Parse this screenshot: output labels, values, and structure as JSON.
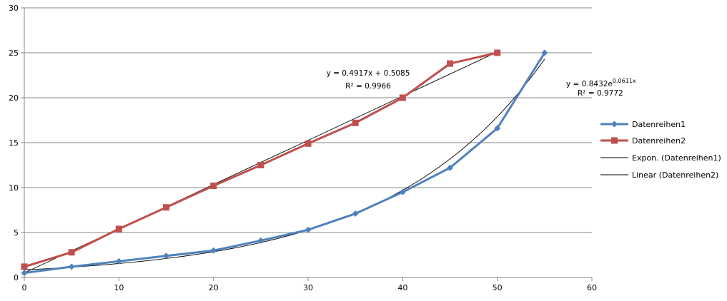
{
  "chart_data": {
    "type": "scatter",
    "xlim": [
      0,
      60
    ],
    "ylim": [
      0,
      30
    ],
    "x_ticks": [
      0,
      10,
      20,
      30,
      40,
      50,
      60
    ],
    "y_ticks": [
      0,
      5,
      10,
      15,
      20,
      25,
      30
    ],
    "grid": "horizontal",
    "legend_placement": "right",
    "series": [
      {
        "name": "Datenreihen1",
        "color": "#4F81BD",
        "marker": "diamond",
        "x": [
          0,
          5,
          10,
          15,
          20,
          25,
          30,
          35,
          40,
          45,
          50,
          55
        ],
        "y": [
          0.5,
          1.2,
          1.8,
          2.4,
          3.0,
          4.1,
          5.3,
          7.1,
          9.5,
          12.2,
          16.6,
          25.0
        ]
      },
      {
        "name": "Datenreihen2",
        "color": "#C0504D",
        "marker": "square",
        "x": [
          0,
          5,
          10,
          15,
          20,
          25,
          30,
          35,
          40,
          45,
          50
        ],
        "y": [
          1.2,
          2.8,
          5.4,
          7.8,
          10.2,
          12.5,
          14.9,
          17.2,
          20.0,
          23.8,
          25.0
        ]
      }
    ],
    "trendlines": [
      {
        "name": "Expon. (Datenreihen1)",
        "type": "exponential",
        "a": 0.8432,
        "b": 0.0611,
        "x_range": [
          0,
          55
        ],
        "equation_prefix": "y = 0.8432e",
        "equation_exponent": "0.0611x",
        "r_squared": "R² = 0.9772"
      },
      {
        "name": "Linear (Datenreihen2)",
        "type": "linear",
        "m": 0.4917,
        "c": 0.5085,
        "x_range": [
          0,
          50
        ],
        "equation": "y = 0.4917x + 0.5085",
        "r_squared": "R² = 0.9966"
      }
    ],
    "legend": [
      "Datenreihen1",
      "Datenreihen2",
      "Expon. (Datenreihen1)",
      "Linear (Datenreihen2)"
    ]
  }
}
